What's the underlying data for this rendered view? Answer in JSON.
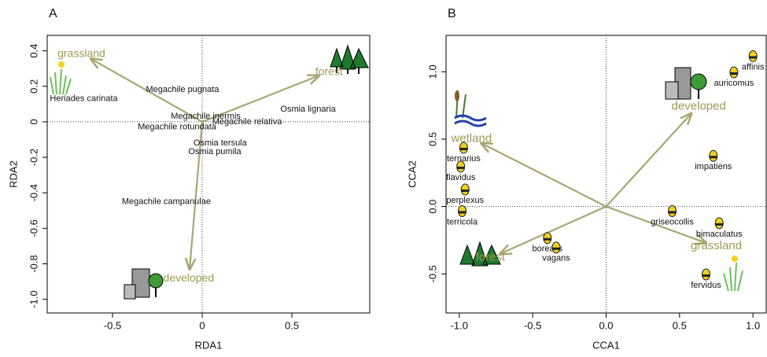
{
  "chart_data": [
    {
      "type": "scatter",
      "panel": "A",
      "xlabel": "RDA1",
      "ylabel": "RDA2",
      "xlim": [
        -0.864,
        0.934
      ],
      "ylim": [
        -1.077,
        0.487
      ],
      "xticks": [
        -0.5,
        0,
        0.5
      ],
      "yticks": [
        0.4,
        0.2,
        0,
        -0.2,
        -0.4,
        -0.6,
        -0.8,
        {
          "value": -1.0,
          "label": "-1.0"
        }
      ],
      "vector_color": "#a9a673",
      "vectors": [
        {
          "name": "grassland",
          "x": -0.62,
          "y": 0.355
        },
        {
          "name": "forest",
          "x": 0.65,
          "y": 0.26
        },
        {
          "name": "developed",
          "x": -0.07,
          "y": -0.83
        }
      ],
      "points": [
        {
          "name": "Heriades carinata",
          "x": -0.66,
          "y": 0.13
        },
        {
          "name": "Megachile pugnata",
          "x": -0.11,
          "y": 0.18
        },
        {
          "name": "Megachile inermis",
          "x": 0.02,
          "y": 0.03
        },
        {
          "name": "Megachile rotundata",
          "x": -0.14,
          "y": -0.03
        },
        {
          "name": "Megachile relativa",
          "x": 0.25,
          "y": 0.0
        },
        {
          "name": "Osmia lignaria",
          "x": 0.59,
          "y": 0.07
        },
        {
          "name": "Osmia tersula",
          "x": 0.1,
          "y": -0.12
        },
        {
          "name": "Osmia pumila",
          "x": 0.07,
          "y": -0.17
        },
        {
          "name": "Megachile campanulae",
          "x": -0.2,
          "y": -0.45
        }
      ]
    },
    {
      "type": "scatter",
      "panel": "B",
      "xlabel": "CCA1",
      "ylabel": "CCA2",
      "xlim": [
        -1.09,
        1.09
      ],
      "ylim": [
        -0.79,
        1.27
      ],
      "xticks": [
        {
          "value": -1.0,
          "label": "-1.0"
        },
        -0.5,
        {
          "value": 0,
          "label": "0.0"
        },
        0.5,
        {
          "value": 1.0,
          "label": "1.0"
        }
      ],
      "yticks": [
        {
          "value": 1.0,
          "label": "1.0"
        },
        0.5,
        {
          "value": 0,
          "label": "0.0"
        },
        -0.5
      ],
      "vector_color": "#a9a673",
      "vectors": [
        {
          "name": "wetland",
          "x": -0.85,
          "y": 0.47
        },
        {
          "name": "developed",
          "x": 0.58,
          "y": 0.69
        },
        {
          "name": "grassland",
          "x": 0.68,
          "y": -0.27
        },
        {
          "name": "forest",
          "x": -0.72,
          "y": -0.35
        }
      ],
      "points": [
        {
          "name": "affinis",
          "x": 1.0,
          "y": 1.04
        },
        {
          "name": "auricomus",
          "x": 0.87,
          "y": 0.92
        },
        {
          "name": "impatiens",
          "x": 0.73,
          "y": 0.3
        },
        {
          "name": "griseocollis",
          "x": 0.45,
          "y": -0.11
        },
        {
          "name": "bimaculatus",
          "x": 0.77,
          "y": -0.2
        },
        {
          "name": "fervidus",
          "x": 0.68,
          "y": -0.58
        },
        {
          "name": "ternarius",
          "x": -0.97,
          "y": 0.36
        },
        {
          "name": "flavidus",
          "x": -0.99,
          "y": 0.22
        },
        {
          "name": "perplexus",
          "x": -0.96,
          "y": 0.05
        },
        {
          "name": "terricola",
          "x": -0.98,
          "y": -0.11
        },
        {
          "name": "borealis",
          "x": -0.4,
          "y": -0.31
        },
        {
          "name": "vagans",
          "x": -0.34,
          "y": -0.38
        }
      ]
    }
  ]
}
